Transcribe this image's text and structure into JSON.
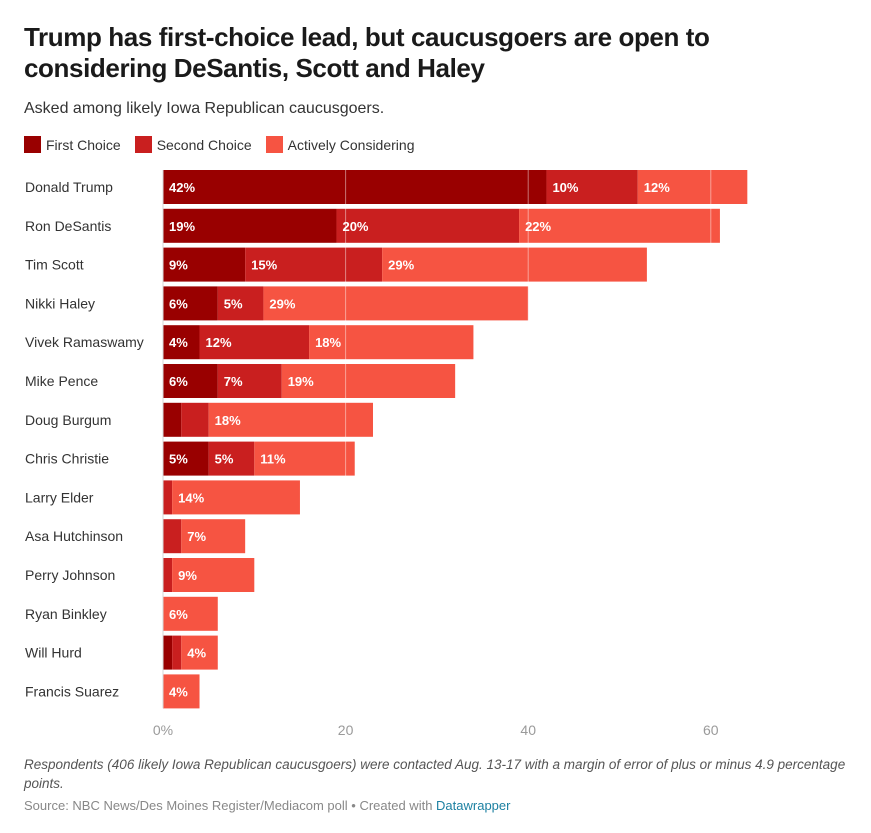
{
  "header": {
    "title": "Trump has first-choice lead, but caucusgoers are open to considering DeSantis, Scott and Haley",
    "subtitle": "Asked among likely Iowa Republican caucusgoers."
  },
  "legend": [
    {
      "label": "First Choice",
      "color": "#990000"
    },
    {
      "label": "Second Choice",
      "color": "#c91f1f"
    },
    {
      "label": "Actively Considering",
      "color": "#f65442"
    }
  ],
  "chart_data": {
    "type": "bar",
    "orientation": "horizontal",
    "stacked": true,
    "title": "Trump has first-choice lead, but caucusgoers are open to considering DeSantis, Scott and Haley",
    "subtitle": "Asked among likely Iowa Republican caucusgoers.",
    "xlabel": "",
    "ylabel": "",
    "xlim": [
      0,
      64
    ],
    "x_ticks": [
      0,
      20,
      40,
      60
    ],
    "x_tick_labels": [
      "0%",
      "20",
      "40",
      "60"
    ],
    "grid": true,
    "legend_position": "top-left",
    "categories": [
      "Donald Trump",
      "Ron DeSantis",
      "Tim Scott",
      "Nikki Haley",
      "Vivek Ramaswamy",
      "Mike Pence",
      "Doug Burgum",
      "Chris Christie",
      "Larry Elder",
      "Asa Hutchinson",
      "Perry Johnson",
      "Ryan Binkley",
      "Will Hurd",
      "Francis Suarez"
    ],
    "series": [
      {
        "name": "First Choice",
        "color": "#990000",
        "values": [
          42,
          19,
          9,
          6,
          4,
          6,
          2,
          5,
          0,
          0,
          0,
          0,
          1,
          0
        ],
        "labels": [
          "42%",
          "19%",
          "9%",
          "6%",
          "4%",
          "6%",
          "",
          "5%",
          "",
          "",
          "",
          "",
          "",
          ""
        ]
      },
      {
        "name": "Second Choice",
        "color": "#c91f1f",
        "values": [
          10,
          20,
          15,
          5,
          12,
          7,
          3,
          5,
          1,
          2,
          1,
          0,
          1,
          0
        ],
        "labels": [
          "10%",
          "20%",
          "15%",
          "5%",
          "12%",
          "7%",
          "",
          "5%",
          "",
          "",
          "",
          "",
          "",
          ""
        ]
      },
      {
        "name": "Actively Considering",
        "color": "#f65442",
        "values": [
          12,
          22,
          29,
          29,
          18,
          19,
          18,
          11,
          14,
          7,
          9,
          6,
          4,
          4
        ],
        "labels": [
          "12%",
          "22%",
          "29%",
          "29%",
          "18%",
          "19%",
          "18%",
          "11%",
          "14%",
          "7%",
          "9%",
          "6%",
          "4%",
          "4%"
        ]
      }
    ]
  },
  "footer": {
    "notes": "Respondents (406 likely Iowa Republican caucusgoers) were contacted Aug. 13-17 with a margin of error of plus or minus 4.9 percentage points.",
    "source_prefix": "Source: NBC News/Des Moines Register/Mediacom poll • Created with ",
    "source_link": "Datawrapper"
  }
}
